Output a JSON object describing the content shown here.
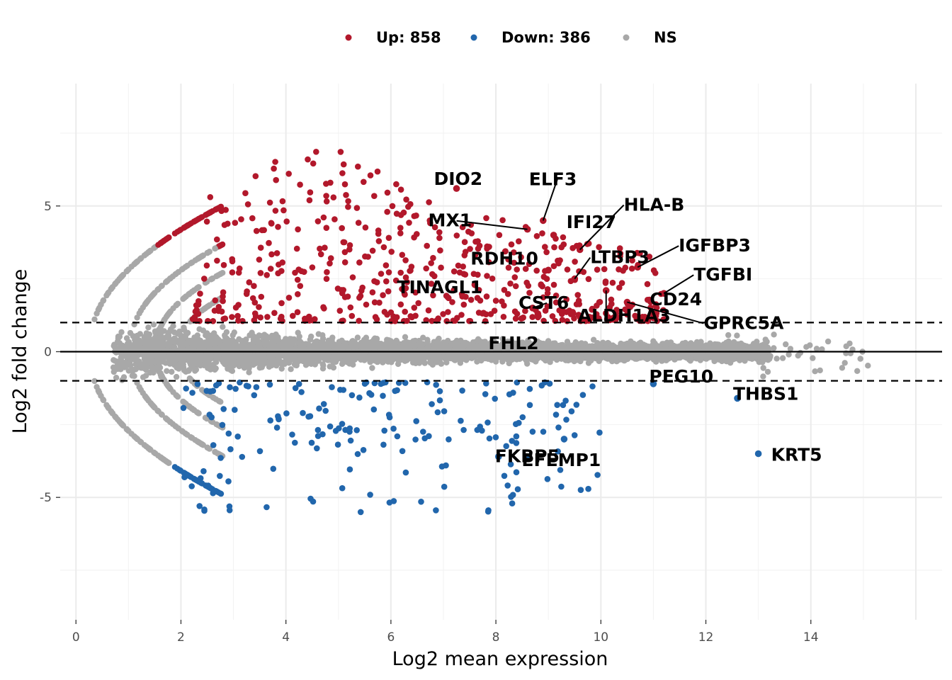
{
  "chart_data": {
    "type": "scatter",
    "title": "",
    "xlabel": "Log2 mean expression",
    "ylabel": "Log2 fold change",
    "xlim": [
      -0.3,
      16.5
    ],
    "ylim": [
      -9.2,
      9.2
    ],
    "x_ticks": [
      0,
      2,
      4,
      6,
      8,
      10,
      12,
      14
    ],
    "y_ticks": [
      -5,
      0,
      5
    ],
    "grid": true,
    "legend_position": "top",
    "hlines": [
      {
        "y": 0,
        "style": "solid"
      },
      {
        "y": 1,
        "style": "dashed"
      },
      {
        "y": -1,
        "style": "dashed"
      }
    ],
    "series": [
      {
        "name": "Up: 858",
        "color": "#b2182b",
        "category": "up"
      },
      {
        "name": "Down: 386",
        "color": "#2166ac",
        "category": "down"
      },
      {
        "name": "NS",
        "color": "#a8a8a8",
        "category": "ns"
      }
    ],
    "labeled_points": [
      {
        "gene": "DIO2",
        "x": 7.25,
        "y": 5.6,
        "category": "up"
      },
      {
        "gene": "ELF3",
        "x": 8.9,
        "y": 4.5,
        "category": "up"
      },
      {
        "gene": "MX1",
        "x": 8.6,
        "y": 4.2,
        "category": "up"
      },
      {
        "gene": "IFI27",
        "x": 9.1,
        "y": 4.0,
        "category": "up"
      },
      {
        "gene": "HLA-B",
        "x": 9.6,
        "y": 3.5,
        "category": "up"
      },
      {
        "gene": "IGFBP3",
        "x": 10.7,
        "y": 2.9,
        "category": "up"
      },
      {
        "gene": "RDH10",
        "x": 9.0,
        "y": 2.8,
        "category": "up"
      },
      {
        "gene": "LTBP3",
        "x": 9.5,
        "y": 2.5,
        "category": "up"
      },
      {
        "gene": "TGFBI",
        "x": 11.2,
        "y": 2.0,
        "category": "up"
      },
      {
        "gene": "TINAGL1",
        "x": 7.6,
        "y": 2.3,
        "category": "up"
      },
      {
        "gene": "CST6",
        "x": 8.7,
        "y": 1.5,
        "category": "up"
      },
      {
        "gene": "ALDH1A3",
        "x": 10.1,
        "y": 2.1,
        "category": "up"
      },
      {
        "gene": "FHL2",
        "x": 8.8,
        "y": 1.3,
        "category": "up"
      },
      {
        "gene": "CD24",
        "x": 11.2,
        "y": 1.1,
        "category": "up"
      },
      {
        "gene": "GPRC5A",
        "x": 10.5,
        "y": 1.7,
        "category": "up"
      },
      {
        "gene": "PEG10",
        "x": 11.0,
        "y": -1.1,
        "category": "down"
      },
      {
        "gene": "EFEMP1",
        "x": 9.3,
        "y": -3.0,
        "category": "down"
      },
      {
        "gene": "THBS1",
        "x": 12.6,
        "y": -1.6,
        "category": "down"
      },
      {
        "gene": "FKBP5",
        "x": 8.05,
        "y": -3.6,
        "category": "down"
      },
      {
        "gene": "KRT5",
        "x": 13.0,
        "y": -3.5,
        "category": "down"
      }
    ]
  }
}
